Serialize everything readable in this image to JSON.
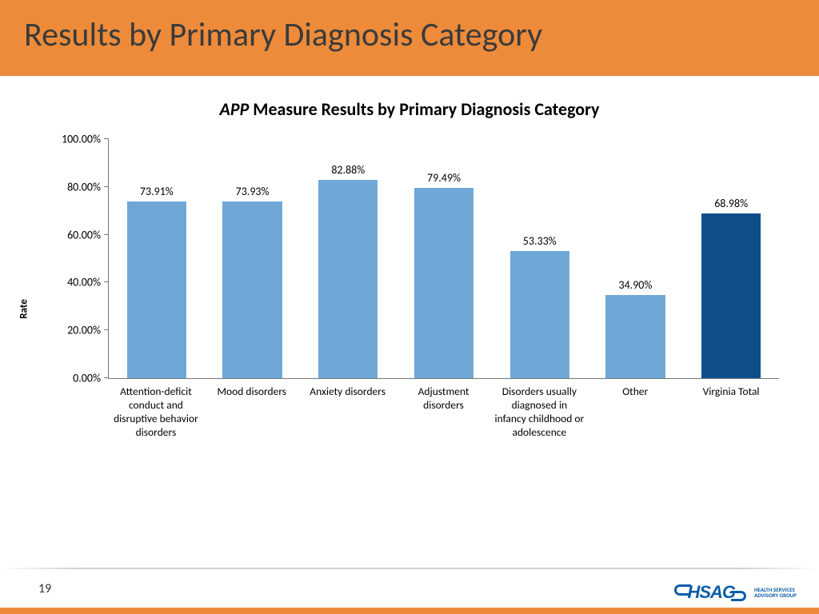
{
  "header": {
    "title": "Results by Primary Diagnosis Category"
  },
  "chart": {
    "type": "bar",
    "title_prefix_italic": "APP",
    "title_rest": " Measure Results by Primary Diagnosis Category",
    "ylabel": "Rate",
    "ylim": [
      0,
      100
    ],
    "ytick_step": 20,
    "ytick_format_suffix": ".00%",
    "categories": [
      "Attention-deficit conduct and disruptive behavior disorders",
      "Mood disorders",
      "Anxiety disorders",
      "Adjustment disorders",
      "Disorders usually diagnosed in infancy childhood or adolescence",
      "Other",
      "Virginia Total"
    ],
    "values": [
      73.91,
      73.93,
      82.88,
      79.49,
      53.33,
      34.9,
      68.98
    ],
    "value_labels": [
      "73.91%",
      "73.93%",
      "82.88%",
      "79.49%",
      "53.33%",
      "34.90%",
      "68.98%"
    ],
    "bar_colors": [
      "#6fa8d6",
      "#6fa8d6",
      "#6fa8d6",
      "#6fa8d6",
      "#6fa8d6",
      "#6fa8d6",
      "#0e4e8b"
    ],
    "bar_width": 0.62,
    "background_color": "#ffffff",
    "axis_color": "#777777",
    "label_fontsize": 14,
    "title_fontsize": 22
  },
  "footer": {
    "page_number": "19",
    "logo_main": "HSAG",
    "logo_sub_line1": "HEALTH SERVICES",
    "logo_sub_line2": "ADVISORY GROUP"
  },
  "colors": {
    "header_band": "#ed8b3a",
    "footer_bar": "#ed8b3a",
    "logo": "#0b5ea8"
  }
}
